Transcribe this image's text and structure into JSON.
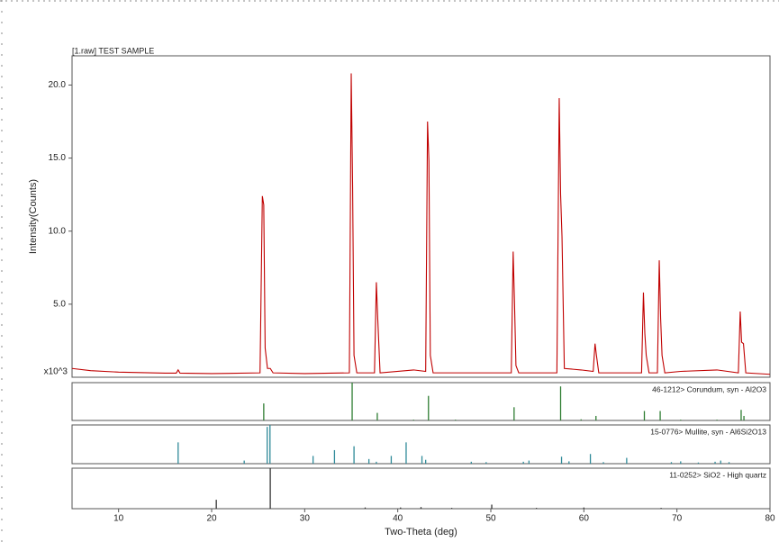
{
  "chart_data": [
    {
      "type": "line",
      "title": "[1.raw] TEST SAMPLE",
      "ylabel": "Intensity(Counts)",
      "y_multiplier_label": "x10^3",
      "color": "#c00000",
      "xlim": [
        5,
        80
      ],
      "ylim": [
        0,
        22
      ],
      "yticks": [
        {
          "value": 5,
          "label": "5.0"
        },
        {
          "value": 10,
          "label": "10.0"
        },
        {
          "value": 15,
          "label": "15.0"
        },
        {
          "value": 20,
          "label": "20.0"
        }
      ],
      "x": [
        5,
        7,
        10,
        15,
        16.2,
        16.4,
        16.6,
        20,
        25.2,
        25.45,
        25.6,
        25.75,
        26.0,
        26.3,
        26.6,
        30,
        34.8,
        35.0,
        35.15,
        35.3,
        35.6,
        37.5,
        37.7,
        37.85,
        38.1,
        41.7,
        43.0,
        43.2,
        43.35,
        43.5,
        43.8,
        46.2,
        52.2,
        52.4,
        52.55,
        52.7,
        53.0,
        57.1,
        57.35,
        57.5,
        57.65,
        57.9,
        59.7,
        61.0,
        61.2,
        61.35,
        61.6,
        66.2,
        66.4,
        66.55,
        66.7,
        67.0,
        67.9,
        68.1,
        68.25,
        68.4,
        68.7,
        70.4,
        74.3,
        76.6,
        76.8,
        76.95,
        77.15,
        77.4,
        80
      ],
      "values": [
        0.6,
        0.45,
        0.35,
        0.28,
        0.28,
        0.5,
        0.28,
        0.25,
        0.3,
        12.4,
        11.8,
        2,
        0.6,
        0.6,
        0.3,
        0.25,
        0.3,
        20.8,
        13,
        1.5,
        0.3,
        0.3,
        6.5,
        4,
        0.3,
        0.5,
        0.4,
        17.5,
        14.8,
        1.5,
        0.3,
        0.3,
        0.3,
        8.6,
        5,
        0.8,
        0.3,
        0.3,
        19.1,
        12.5,
        9.6,
        0.6,
        0.5,
        0.4,
        2.3,
        1.5,
        0.3,
        0.3,
        5.8,
        3,
        1.5,
        0.3,
        0.3,
        8.0,
        4,
        1.5,
        0.3,
        0.4,
        0.5,
        0.3,
        4.5,
        2.4,
        2.3,
        0.3,
        0.2
      ]
    },
    {
      "type": "stem",
      "title": "46-1212> Corundum, syn - Al2O3",
      "color": "#2e7d32",
      "xlim": [
        5,
        80
      ],
      "ylim": [
        0,
        100
      ],
      "x": [
        25.6,
        35.1,
        37.8,
        41.7,
        43.3,
        46.2,
        52.5,
        57.5,
        59.7,
        61.3,
        66.5,
        68.2,
        70.4,
        74.3,
        76.9,
        77.2
      ],
      "values": [
        45,
        100,
        20,
        2,
        65,
        2,
        35,
        90,
        3,
        12,
        25,
        25,
        2,
        2,
        28,
        12
      ]
    },
    {
      "type": "stem",
      "title": "15-0776> Mullite, syn - Al6Si2O13",
      "color": "#2f8a99",
      "xlim": [
        5,
        80
      ],
      "ylim": [
        0,
        100
      ],
      "x": [
        16.4,
        23.5,
        25.97,
        26.27,
        30.9,
        33.2,
        35.3,
        36.9,
        37.7,
        39.3,
        40.9,
        42.6,
        43.0,
        47.9,
        49.5,
        53.5,
        54.1,
        57.6,
        58.4,
        60.7,
        62.1,
        64.6,
        69.4,
        70.4,
        72.3,
        74.1,
        74.7,
        75.6
      ],
      "values": [
        55,
        8,
        95,
        100,
        20,
        35,
        45,
        12,
        5,
        20,
        55,
        20,
        10,
        5,
        4,
        5,
        8,
        18,
        6,
        25,
        4,
        15,
        4,
        6,
        3,
        5,
        8,
        4
      ]
    },
    {
      "type": "stem",
      "title": "11-0252> SiO2 - High quartz",
      "color": "#333333",
      "label_color": "#8b1a1a",
      "xlim": [
        5,
        80
      ],
      "ylim": [
        0,
        100
      ],
      "x": [
        20.5,
        26.3,
        36.5,
        40.3,
        42.5,
        45.8,
        50.1,
        54.9,
        60.0,
        68.3
      ],
      "values": [
        22,
        100,
        3,
        3,
        4,
        2,
        10,
        2,
        3,
        2
      ],
      "xticks": [
        10,
        20,
        30,
        40,
        50,
        60,
        70,
        80
      ],
      "xlabel": "Two-Theta (deg)"
    }
  ]
}
